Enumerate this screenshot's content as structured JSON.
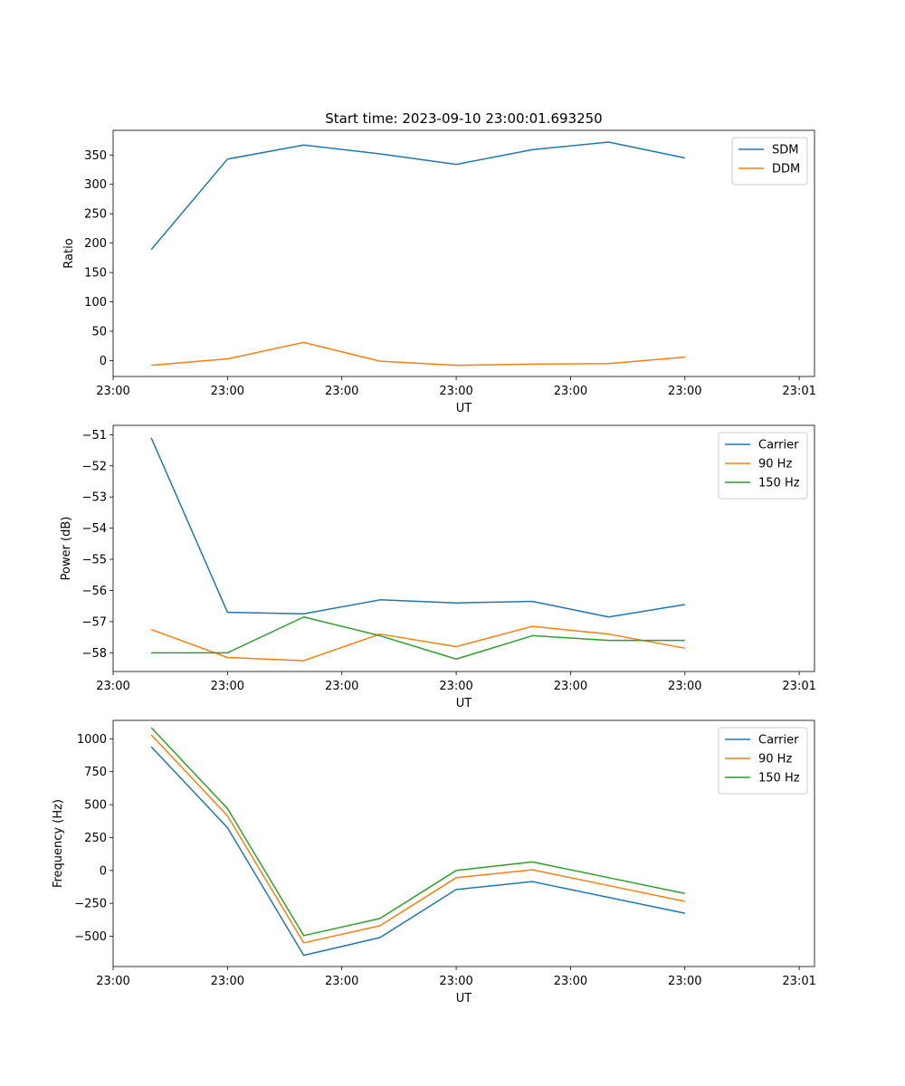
{
  "figure_title": "Start time: 2023-09-10 23:00:01.693250",
  "colors": {
    "c0": "#1f77b4",
    "c1": "#ff7f0e",
    "c2": "#2ca02c"
  },
  "chart_data": [
    {
      "type": "line",
      "xlabel": "UT",
      "ylabel": "Ratio",
      "xlim": [
        -0.5,
        8.7
      ],
      "x_ticks": [
        -0.5,
        1.0,
        2.5,
        4.0,
        5.5,
        7.0,
        8.5
      ],
      "x_tick_labels": [
        "23:00",
        "23:00",
        "23:00",
        "23:00",
        "23:00",
        "23:00",
        "23:01"
      ],
      "ylim": [
        -27,
        392
      ],
      "y_ticks": [
        0,
        50,
        100,
        150,
        200,
        250,
        300,
        350
      ],
      "y_tick_labels": [
        "0",
        "50",
        "100",
        "150",
        "200",
        "250",
        "300",
        "350"
      ],
      "x": [
        0,
        1,
        2,
        3,
        4,
        5,
        6,
        7
      ],
      "legend_position": "top-right",
      "series": [
        {
          "name": "SDM",
          "color": "#1f77b4",
          "values": [
            189,
            343,
            367,
            352,
            334,
            359,
            372,
            345
          ]
        },
        {
          "name": "DDM",
          "color": "#ff7f0e",
          "values": [
            -8,
            3,
            31,
            -1,
            -8,
            -6,
            -5,
            6
          ]
        }
      ]
    },
    {
      "type": "line",
      "xlabel": "UT",
      "ylabel": "Power (dB)",
      "xlim": [
        -0.5,
        8.7
      ],
      "x_ticks": [
        -0.5,
        1.0,
        2.5,
        4.0,
        5.5,
        7.0,
        8.5
      ],
      "x_tick_labels": [
        "23:00",
        "23:00",
        "23:00",
        "23:00",
        "23:00",
        "23:00",
        "23:01"
      ],
      "ylim": [
        -58.6,
        -50.7
      ],
      "y_ticks": [
        -58,
        -57,
        -56,
        -55,
        -54,
        -53,
        -52,
        -51
      ],
      "y_tick_labels": [
        "−58",
        "−57",
        "−56",
        "−55",
        "−54",
        "−53",
        "−52",
        "−51"
      ],
      "x": [
        0,
        1,
        2,
        3,
        4,
        5,
        6,
        7
      ],
      "legend_position": "top-right",
      "series": [
        {
          "name": "Carrier",
          "color": "#1f77b4",
          "values": [
            -51.1,
            -56.7,
            -56.75,
            -56.3,
            -56.4,
            -56.35,
            -56.85,
            -56.45
          ]
        },
        {
          "name": "90 Hz",
          "color": "#ff7f0e",
          "values": [
            -57.25,
            -58.15,
            -58.25,
            -57.4,
            -57.8,
            -57.15,
            -57.4,
            -57.85
          ]
        },
        {
          "name": "150 Hz",
          "color": "#2ca02c",
          "values": [
            -58.0,
            -58.0,
            -56.85,
            -57.45,
            -58.2,
            -57.45,
            -57.6,
            -57.6
          ]
        }
      ]
    },
    {
      "type": "line",
      "xlabel": "UT",
      "ylabel": "Frequency (Hz)",
      "xlim": [
        -0.5,
        8.7
      ],
      "x_ticks": [
        -0.5,
        1.0,
        2.5,
        4.0,
        5.5,
        7.0,
        8.5
      ],
      "x_tick_labels": [
        "23:00",
        "23:00",
        "23:00",
        "23:00",
        "23:00",
        "23:00",
        "23:01"
      ],
      "ylim": [
        -730,
        1140
      ],
      "y_ticks": [
        -500,
        -250,
        0,
        250,
        500,
        750,
        1000
      ],
      "y_tick_labels": [
        "−500",
        "−250",
        "0",
        "250",
        "500",
        "750",
        "1000"
      ],
      "x": [
        0,
        1,
        2,
        3,
        4,
        5,
        6,
        7
      ],
      "legend_position": "top-right",
      "series": [
        {
          "name": "Carrier",
          "color": "#1f77b4",
          "values": [
            940,
            325,
            -645,
            -510,
            -145,
            -85,
            -205,
            -325
          ]
        },
        {
          "name": "90 Hz",
          "color": "#ff7f0e",
          "values": [
            1030,
            415,
            -550,
            -420,
            -55,
            5,
            -115,
            -235
          ]
        },
        {
          "name": "150 Hz",
          "color": "#2ca02c",
          "values": [
            1085,
            470,
            -495,
            -365,
            0,
            65,
            -55,
            -175
          ]
        }
      ]
    }
  ]
}
